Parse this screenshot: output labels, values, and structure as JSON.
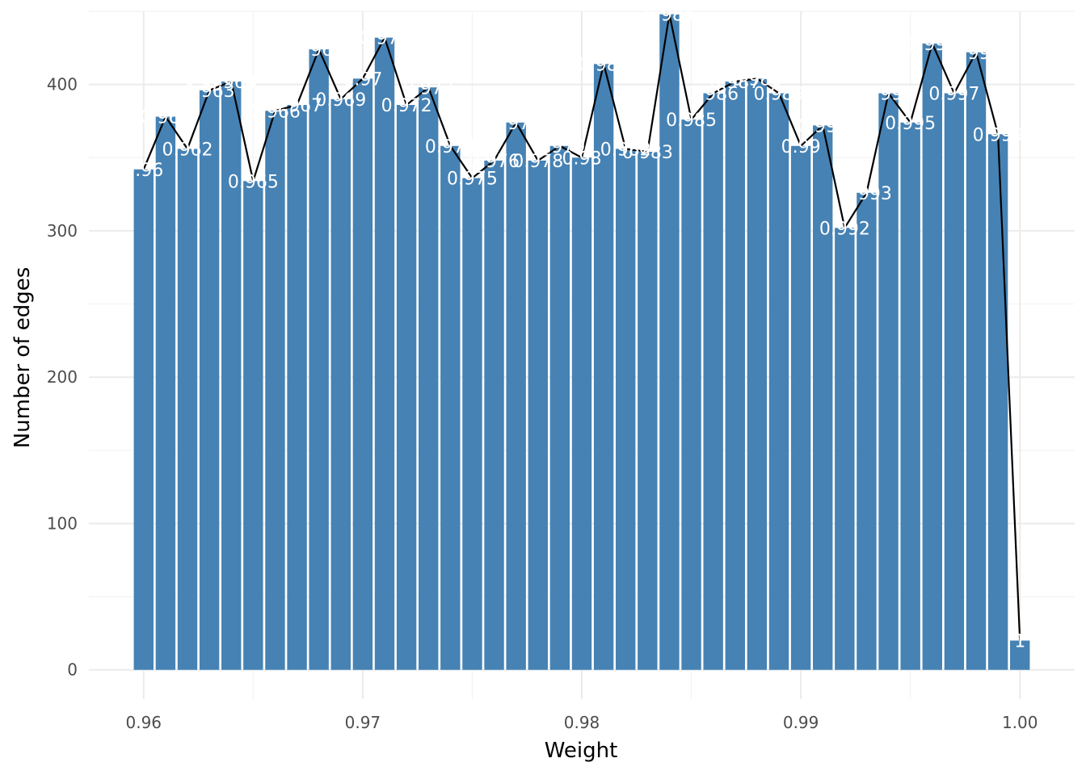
{
  "chart_data": {
    "type": "bar",
    "title": "",
    "xlabel": "Weight",
    "ylabel": "Number of edges",
    "xlim": [
      0.9575,
      1.0025
    ],
    "ylim": [
      -20,
      450
    ],
    "grid": true,
    "legend": "none",
    "bar_color": "#4682B4",
    "line_color": "#000000",
    "x_ticks": [
      0.96,
      0.97,
      0.98,
      0.99,
      1.0
    ],
    "x_tick_labels": [
      "0.96",
      "0.97",
      "0.98",
      "0.99",
      "1.00"
    ],
    "y_ticks": [
      0,
      100,
      200,
      300,
      400
    ],
    "y_tick_labels": [
      "0",
      "100",
      "200",
      "300",
      "400"
    ],
    "x": [
      0.96,
      0.961,
      0.962,
      0.963,
      0.964,
      0.965,
      0.966,
      0.967,
      0.968,
      0.969,
      0.97,
      0.971,
      0.972,
      0.973,
      0.974,
      0.975,
      0.976,
      0.977,
      0.978,
      0.979,
      0.98,
      0.981,
      0.982,
      0.983,
      0.984,
      0.985,
      0.986,
      0.987,
      0.988,
      0.989,
      0.99,
      0.991,
      0.992,
      0.993,
      0.994,
      0.995,
      0.996,
      0.997,
      0.998,
      0.999,
      1.0
    ],
    "bar_labels": [
      "0.96",
      "0.961",
      "0.962",
      "0.963",
      "0.964",
      "0.965",
      "0.966",
      "0.967",
      "0.968",
      "0.969",
      "0.97",
      "0.971",
      "0.972",
      "0.973",
      "0.974",
      "0.975",
      "0.976",
      "0.977",
      "0.978",
      "0.979",
      "0.98",
      "0.981",
      "0.982",
      "0.983",
      "0.984",
      "0.985",
      "0.986",
      "0.987",
      "0.988",
      "0.989",
      "0.99",
      "0.991",
      "0.992",
      "0.993",
      "0.994",
      "0.995",
      "0.996",
      "0.997",
      "0.998",
      "0.999",
      "1"
    ],
    "values": [
      342,
      378,
      356,
      396,
      402,
      334,
      382,
      386,
      424,
      390,
      404,
      432,
      386,
      398,
      358,
      336,
      348,
      374,
      348,
      358,
      350,
      414,
      356,
      354,
      448,
      376,
      394,
      402,
      404,
      394,
      358,
      372,
      302,
      326,
      394,
      374,
      428,
      394,
      422,
      366,
      20
    ]
  }
}
